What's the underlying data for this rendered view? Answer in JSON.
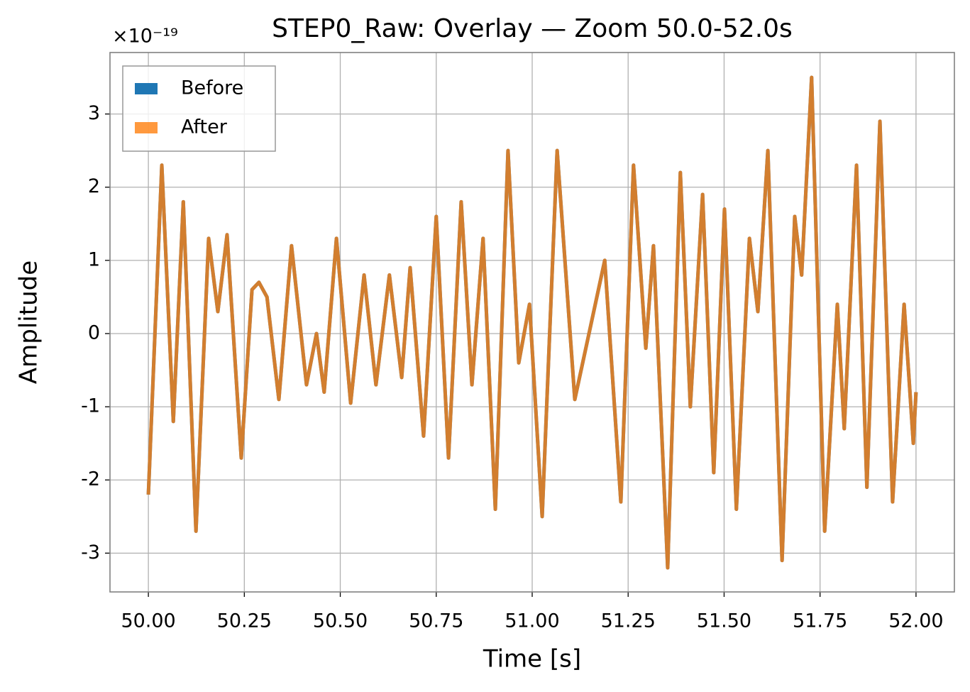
{
  "chart_data": {
    "type": "line",
    "title": "STEP0_Raw: Overlay — Zoom 50.0-52.0s",
    "y_offset_label": "×10⁻¹⁹",
    "xlabel": "Time [s]",
    "ylabel": "Amplitude",
    "x": [
      50.0,
      50.035,
      50.065,
      50.091,
      50.124,
      50.157,
      50.181,
      50.205,
      50.242,
      50.27,
      50.288,
      50.309,
      50.34,
      50.373,
      50.412,
      50.438,
      50.458,
      50.49,
      50.527,
      50.562,
      50.593,
      50.628,
      50.66,
      50.682,
      50.717,
      50.75,
      50.782,
      50.815,
      50.843,
      50.872,
      50.904,
      50.937,
      50.965,
      50.993,
      51.026,
      51.065,
      51.111,
      51.148,
      51.189,
      51.231,
      51.264,
      51.296,
      51.316,
      51.353,
      51.386,
      51.412,
      51.444,
      51.473,
      51.501,
      51.532,
      51.566,
      51.588,
      51.614,
      51.651,
      51.684,
      51.702,
      51.728,
      51.762,
      51.795,
      51.813,
      51.845,
      51.872,
      51.906,
      51.939,
      51.969,
      51.993,
      52.0
    ],
    "series": [
      {
        "name": "Before",
        "color": "#1f77b4",
        "alpha": 1,
        "values": [
          -2.2,
          2.3,
          -1.2,
          1.8,
          -2.7,
          1.3,
          0.3,
          1.35,
          -1.7,
          0.6,
          0.7,
          0.5,
          -0.9,
          1.2,
          -0.7,
          0.0,
          -0.8,
          1.3,
          -0.95,
          0.8,
          -0.7,
          0.8,
          -0.6,
          0.9,
          -1.4,
          1.6,
          -1.7,
          1.8,
          -0.7,
          1.3,
          -2.4,
          2.5,
          -0.4,
          0.4,
          -2.5,
          2.5,
          -0.9,
          0.0,
          1.0,
          -2.3,
          2.3,
          -0.2,
          1.2,
          -3.2,
          2.2,
          -1.0,
          1.9,
          -1.9,
          1.7,
          -2.4,
          1.3,
          0.3,
          2.5,
          -3.1,
          1.6,
          0.8,
          3.5,
          -2.7,
          0.4,
          -1.3,
          2.3,
          -2.1,
          2.9,
          -2.3,
          0.4,
          -1.5,
          -0.8
        ]
      },
      {
        "name": "After",
        "color": "#ff7f0e",
        "alpha": 0.8,
        "values": [
          -2.2,
          2.3,
          -1.2,
          1.8,
          -2.7,
          1.3,
          0.3,
          1.35,
          -1.7,
          0.6,
          0.7,
          0.5,
          -0.9,
          1.2,
          -0.7,
          0.0,
          -0.8,
          1.3,
          -0.95,
          0.8,
          -0.7,
          0.8,
          -0.6,
          0.9,
          -1.4,
          1.6,
          -1.7,
          1.8,
          -0.7,
          1.3,
          -2.4,
          2.5,
          -0.4,
          0.4,
          -2.5,
          2.5,
          -0.9,
          0.0,
          1.0,
          -2.3,
          2.3,
          -0.2,
          1.2,
          -3.2,
          2.2,
          -1.0,
          1.9,
          -1.9,
          1.7,
          -2.4,
          1.3,
          0.3,
          2.5,
          -3.1,
          1.6,
          0.8,
          3.5,
          -2.7,
          0.4,
          -1.3,
          2.3,
          -2.1,
          2.9,
          -2.3,
          0.4,
          -1.5,
          -0.8
        ]
      }
    ],
    "xlim": [
      49.9,
      52.1
    ],
    "xticks": [
      {
        "value": 50,
        "label": "50.00"
      },
      {
        "value": 50.25,
        "label": "50.25"
      },
      {
        "value": 50.5,
        "label": "50.50"
      },
      {
        "value": 50.75,
        "label": "50.75"
      },
      {
        "value": 51,
        "label": "51.00"
      },
      {
        "value": 51.25,
        "label": "51.25"
      },
      {
        "value": 51.5,
        "label": "51.50"
      },
      {
        "value": 51.75,
        "label": "51.75"
      },
      {
        "value": 52,
        "label": "52.00"
      }
    ],
    "ylim": [
      -3.53,
      3.84
    ],
    "yticks": [
      -3,
      -2,
      -1,
      0,
      1,
      2,
      3
    ],
    "grid": true,
    "legend": "upper left"
  }
}
